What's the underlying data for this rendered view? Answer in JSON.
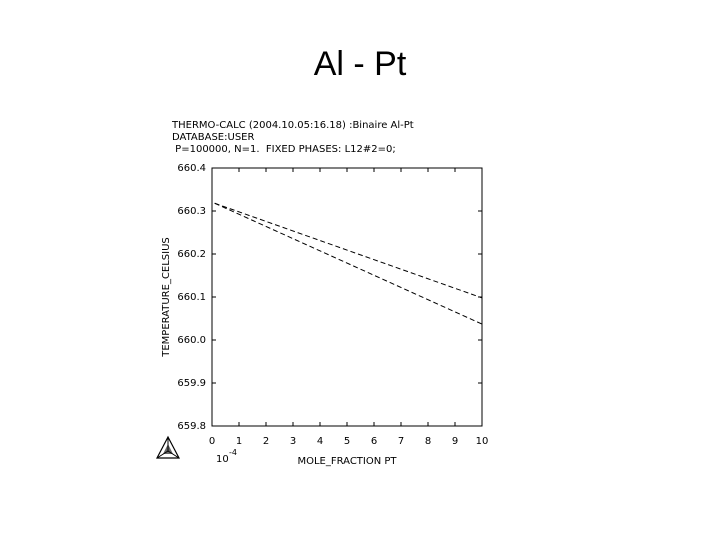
{
  "slide_title": "Al - Pt",
  "chart_data": {
    "type": "line",
    "title": "THERMO-CALC (2004.10.05:16.18) :Binaire Al-Pt",
    "subtitle_lines": [
      "DATABASE:USER",
      " P=100000, N=1.  FIXED PHASES: L12#2=0;"
    ],
    "ylabel": "TEMPERATURE_CELSIUS",
    "xlabel": "MOLE_FRACTION PT",
    "x_scale_base": "10",
    "x_scale_exponent": "-4",
    "xlim": [
      0,
      10
    ],
    "xticks": [
      0,
      1,
      2,
      3,
      4,
      5,
      6,
      7,
      8,
      9,
      10
    ],
    "ylim": [
      659.8,
      660.4
    ],
    "yticks": [
      659.8,
      659.9,
      {
        "value": 660.0,
        "label": "660.0"
      },
      660.1,
      660.2,
      660.3,
      660.4
    ],
    "series": [
      {
        "color": "#000000",
        "x": [
          0.1,
          10
        ],
        "values": [
          660.318,
          660.098
        ]
      },
      {
        "color": "#000000",
        "x": [
          0.1,
          10
        ],
        "values": [
          660.318,
          660.037
        ]
      }
    ],
    "dashed": true
  }
}
